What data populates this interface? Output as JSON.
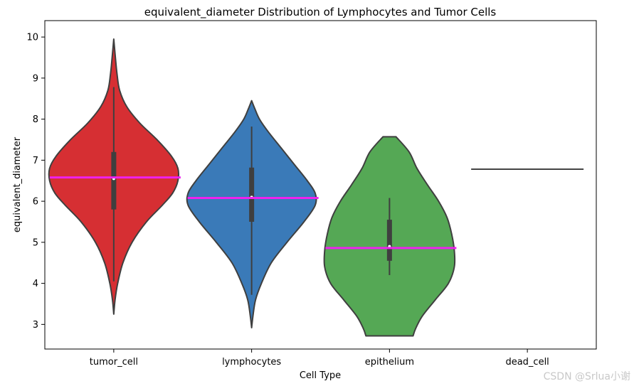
{
  "chart_data": {
    "type": "violin",
    "title": "equivalent_diameter Distribution of Lymphocytes and Tumor Cells",
    "xlabel": "Cell Type",
    "ylabel": "equivalent_diameter",
    "ylim": [
      2.4,
      10.4
    ],
    "yticks": [
      3,
      4,
      5,
      6,
      7,
      8,
      9,
      10
    ],
    "categories": [
      "tumor_cell",
      "lymphocytes",
      "epithelium",
      "dead_cell"
    ],
    "grid": false,
    "legend": "none",
    "mean_line_color": "#ee22ee",
    "violins": [
      {
        "category": "tumor_cell",
        "color": "#d62f33",
        "min": 3.25,
        "max": 9.95,
        "q1": 5.8,
        "median": 6.55,
        "q3": 7.2,
        "whisker_low": 4.05,
        "whisker_high": 8.78,
        "mean": 6.58,
        "profile": [
          [
            3.25,
            0.0
          ],
          [
            3.6,
            0.02
          ],
          [
            4.0,
            0.06
          ],
          [
            4.5,
            0.14
          ],
          [
            5.0,
            0.28
          ],
          [
            5.5,
            0.5
          ],
          [
            5.9,
            0.74
          ],
          [
            6.2,
            0.9
          ],
          [
            6.5,
            0.98
          ],
          [
            6.8,
            0.98
          ],
          [
            7.1,
            0.88
          ],
          [
            7.5,
            0.66
          ],
          [
            7.9,
            0.4
          ],
          [
            8.3,
            0.2
          ],
          [
            8.7,
            0.09
          ],
          [
            9.1,
            0.05
          ],
          [
            9.5,
            0.025
          ],
          [
            9.95,
            0.0
          ]
        ]
      },
      {
        "category": "lymphocytes",
        "color": "#3a7ab8",
        "min": 2.92,
        "max": 8.45,
        "q1": 5.5,
        "median": 6.1,
        "q3": 6.82,
        "whisker_low": 3.72,
        "whisker_high": 7.82,
        "mean": 6.08,
        "profile": [
          [
            2.92,
            0.0
          ],
          [
            3.2,
            0.02
          ],
          [
            3.6,
            0.06
          ],
          [
            4.0,
            0.15
          ],
          [
            4.5,
            0.3
          ],
          [
            5.0,
            0.54
          ],
          [
            5.5,
            0.8
          ],
          [
            5.9,
            0.97
          ],
          [
            6.2,
            0.97
          ],
          [
            6.5,
            0.85
          ],
          [
            6.9,
            0.65
          ],
          [
            7.3,
            0.45
          ],
          [
            7.7,
            0.25
          ],
          [
            8.0,
            0.12
          ],
          [
            8.25,
            0.05
          ],
          [
            8.45,
            0.0
          ]
        ]
      },
      {
        "category": "epithelium",
        "color": "#55a855",
        "min": 2.72,
        "max": 7.57,
        "q1": 4.55,
        "median": 4.9,
        "q3": 5.55,
        "whisker_low": 4.2,
        "whisker_high": 6.08,
        "mean": 4.86,
        "profile": [
          [
            2.72,
            0.36
          ],
          [
            2.9,
            0.4
          ],
          [
            3.2,
            0.5
          ],
          [
            3.6,
            0.7
          ],
          [
            4.0,
            0.9
          ],
          [
            4.4,
            0.99
          ],
          [
            4.8,
            0.99
          ],
          [
            5.2,
            0.95
          ],
          [
            5.6,
            0.88
          ],
          [
            6.0,
            0.75
          ],
          [
            6.4,
            0.58
          ],
          [
            6.8,
            0.42
          ],
          [
            7.2,
            0.3
          ],
          [
            7.57,
            0.1
          ]
        ]
      },
      {
        "category": "dead_cell",
        "color": "#444444",
        "value": 6.78
      }
    ]
  },
  "watermark": "CSDN @Srlua小谢"
}
